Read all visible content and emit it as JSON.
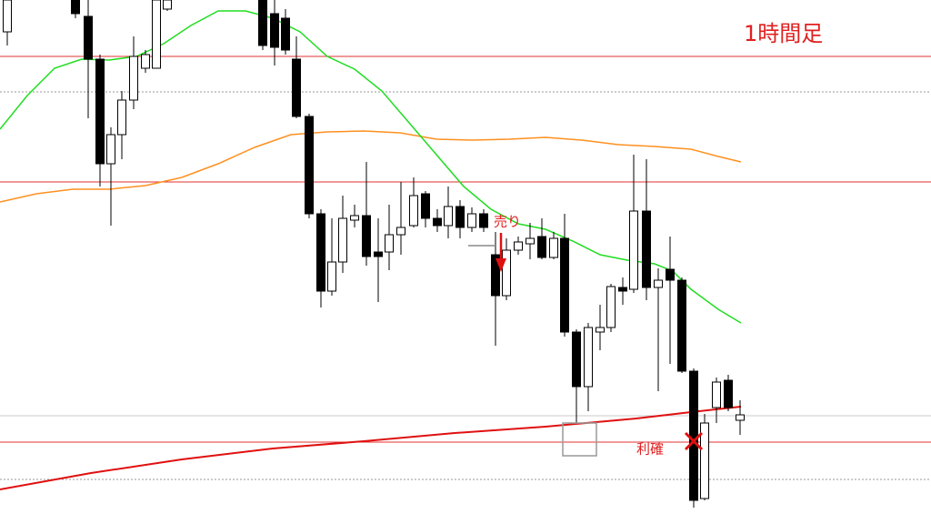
{
  "title": "1時間足",
  "annotations": {
    "sell": "売り",
    "take_profit": "利確"
  }
}
